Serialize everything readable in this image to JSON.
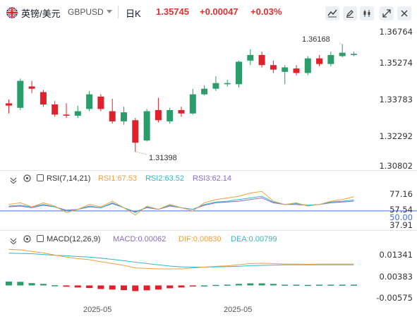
{
  "header": {
    "symbol_name": "英镑/美元",
    "symbol_code": "GBPUSD",
    "interval": "日K",
    "price": "1.35745",
    "change": "+0.00047",
    "change_pct": "+0.03%"
  },
  "price_axis": [
    "1.36764",
    "1.35274",
    "1.33783",
    "1.32292",
    "1.30802"
  ],
  "annotations": {
    "high": "1.36168",
    "low": "1.31398"
  },
  "rsi": {
    "title": "RSI(7,14,21)",
    "rsi1": "RSI1:67.53",
    "rsi2": "RSI2:63.52",
    "rsi3": "RSI3:62.14",
    "axis": [
      "77.16",
      "57.54",
      "50.00",
      "37.91"
    ]
  },
  "macd": {
    "title": "MACD(12,26,9)",
    "macd": "MACD:0.00062",
    "dif": "DIF:0.00830",
    "dea": "DEA:0.00799",
    "axis": [
      "0.01341",
      "0.00383",
      "-0.00575"
    ]
  },
  "dates": [
    "2025-05",
    "2025-05"
  ],
  "colors": {
    "up": "#2a9d6a",
    "down": "#e0202a",
    "rsi1": "#f0a040",
    "rsi2": "#2eb8c8",
    "rsi3": "#8a6ad0",
    "dif": "#f0a040",
    "dea": "#2eb8c8",
    "level50": "#3f6fe8"
  },
  "chart_data": {
    "type": "candlestick",
    "candles": [
      {
        "o": 1.3355,
        "h": 1.3372,
        "l": 1.331,
        "c": 1.3345
      },
      {
        "o": 1.3335,
        "h": 1.3465,
        "l": 1.3325,
        "c": 1.3455
      },
      {
        "o": 1.343,
        "h": 1.3455,
        "l": 1.34,
        "c": 1.342
      },
      {
        "o": 1.3405,
        "h": 1.3415,
        "l": 1.334,
        "c": 1.335
      },
      {
        "o": 1.335,
        "h": 1.3365,
        "l": 1.3295,
        "c": 1.3305
      },
      {
        "o": 1.3305,
        "h": 1.3355,
        "l": 1.329,
        "c": 1.33
      },
      {
        "o": 1.33,
        "h": 1.3345,
        "l": 1.329,
        "c": 1.332
      },
      {
        "o": 1.333,
        "h": 1.341,
        "l": 1.332,
        "c": 1.3395
      },
      {
        "o": 1.3385,
        "h": 1.3395,
        "l": 1.332,
        "c": 1.333
      },
      {
        "o": 1.332,
        "h": 1.3375,
        "l": 1.3265,
        "c": 1.3275
      },
      {
        "o": 1.3275,
        "h": 1.334,
        "l": 1.326,
        "c": 1.3315
      },
      {
        "o": 1.328,
        "h": 1.329,
        "l": 1.314,
        "c": 1.318
      },
      {
        "o": 1.319,
        "h": 1.333,
        "l": 1.3185,
        "c": 1.332
      },
      {
        "o": 1.3325,
        "h": 1.338,
        "l": 1.327,
        "c": 1.328
      },
      {
        "o": 1.3275,
        "h": 1.3335,
        "l": 1.3265,
        "c": 1.3325
      },
      {
        "o": 1.3325,
        "h": 1.334,
        "l": 1.3295,
        "c": 1.331
      },
      {
        "o": 1.331,
        "h": 1.342,
        "l": 1.3305,
        "c": 1.3395
      },
      {
        "o": 1.3395,
        "h": 1.3435,
        "l": 1.339,
        "c": 1.342
      },
      {
        "o": 1.342,
        "h": 1.3475,
        "l": 1.341,
        "c": 1.3445
      },
      {
        "o": 1.344,
        "h": 1.346,
        "l": 1.343,
        "c": 1.3445
      },
      {
        "o": 1.344,
        "h": 1.3545,
        "l": 1.3425,
        "c": 1.354
      },
      {
        "o": 1.3545,
        "h": 1.3595,
        "l": 1.3525,
        "c": 1.357
      },
      {
        "o": 1.357,
        "h": 1.3585,
        "l": 1.3515,
        "c": 1.3525
      },
      {
        "o": 1.3525,
        "h": 1.3545,
        "l": 1.349,
        "c": 1.3505
      },
      {
        "o": 1.3495,
        "h": 1.3525,
        "l": 1.344,
        "c": 1.3515
      },
      {
        "o": 1.351,
        "h": 1.3525,
        "l": 1.348,
        "c": 1.349
      },
      {
        "o": 1.349,
        "h": 1.3565,
        "l": 1.348,
        "c": 1.3555
      },
      {
        "o": 1.3555,
        "h": 1.357,
        "l": 1.352,
        "c": 1.353
      },
      {
        "o": 1.353,
        "h": 1.3585,
        "l": 1.352,
        "c": 1.357
      },
      {
        "o": 1.3565,
        "h": 1.3617,
        "l": 1.356,
        "c": 1.358
      },
      {
        "o": 1.357,
        "h": 1.3585,
        "l": 1.3565,
        "c": 1.3575
      }
    ],
    "rsi1": [
      58,
      60,
      55,
      60,
      56,
      48,
      52,
      58,
      55,
      62,
      54,
      45,
      56,
      52,
      58,
      54,
      50,
      60,
      64,
      66,
      68,
      72,
      74,
      62,
      58,
      60,
      56,
      58,
      62,
      64,
      67.5
    ],
    "rsi2": [
      56,
      57,
      55,
      58,
      55,
      50,
      52,
      56,
      54,
      60,
      54,
      48,
      55,
      52,
      57,
      54,
      52,
      58,
      61,
      62,
      64,
      66,
      68,
      61,
      58,
      59,
      57,
      58,
      61,
      62,
      63.5
    ],
    "rsi3": [
      55,
      56,
      54,
      57,
      55,
      51,
      52,
      55,
      54,
      59,
      54,
      49,
      54,
      52,
      56,
      54,
      52,
      57,
      60,
      61,
      62,
      64,
      66,
      60,
      58,
      58,
      57,
      58,
      60,
      61,
      62.1
    ],
    "dif": [
      0.014,
      0.0138,
      0.0132,
      0.0126,
      0.0118,
      0.011,
      0.0104,
      0.01,
      0.0092,
      0.0085,
      0.0078,
      0.0068,
      0.0066,
      0.0064,
      0.0064,
      0.0064,
      0.0068,
      0.0071,
      0.0074,
      0.0076,
      0.008,
      0.0085,
      0.0086,
      0.0085,
      0.0083,
      0.0083,
      0.0082,
      0.0083,
      0.0083,
      0.0083,
      0.0083
    ],
    "dea": [
      0.0125,
      0.0124,
      0.0123,
      0.012,
      0.0117,
      0.0115,
      0.0112,
      0.011,
      0.0106,
      0.0101,
      0.0096,
      0.009,
      0.0085,
      0.008,
      0.0075,
      0.0072,
      0.0071,
      0.0071,
      0.0072,
      0.0073,
      0.0074,
      0.0077,
      0.0078,
      0.0079,
      0.008,
      0.008,
      0.008,
      0.008,
      0.008,
      0.008,
      0.008
    ],
    "hist": [
      0.0015,
      0.0014,
      0.0009,
      0.0006,
      0.0001,
      -0.0005,
      -0.0008,
      -0.001,
      -0.0014,
      -0.0016,
      -0.0018,
      -0.0022,
      -0.0019,
      -0.0016,
      -0.0011,
      -0.0008,
      -0.0003,
      0.0,
      0.0002,
      0.0003,
      0.0006,
      0.0008,
      0.0008,
      0.0006,
      0.0003,
      0.0003,
      0.0002,
      0.0003,
      0.0003,
      0.0003,
      0.0003
    ]
  }
}
